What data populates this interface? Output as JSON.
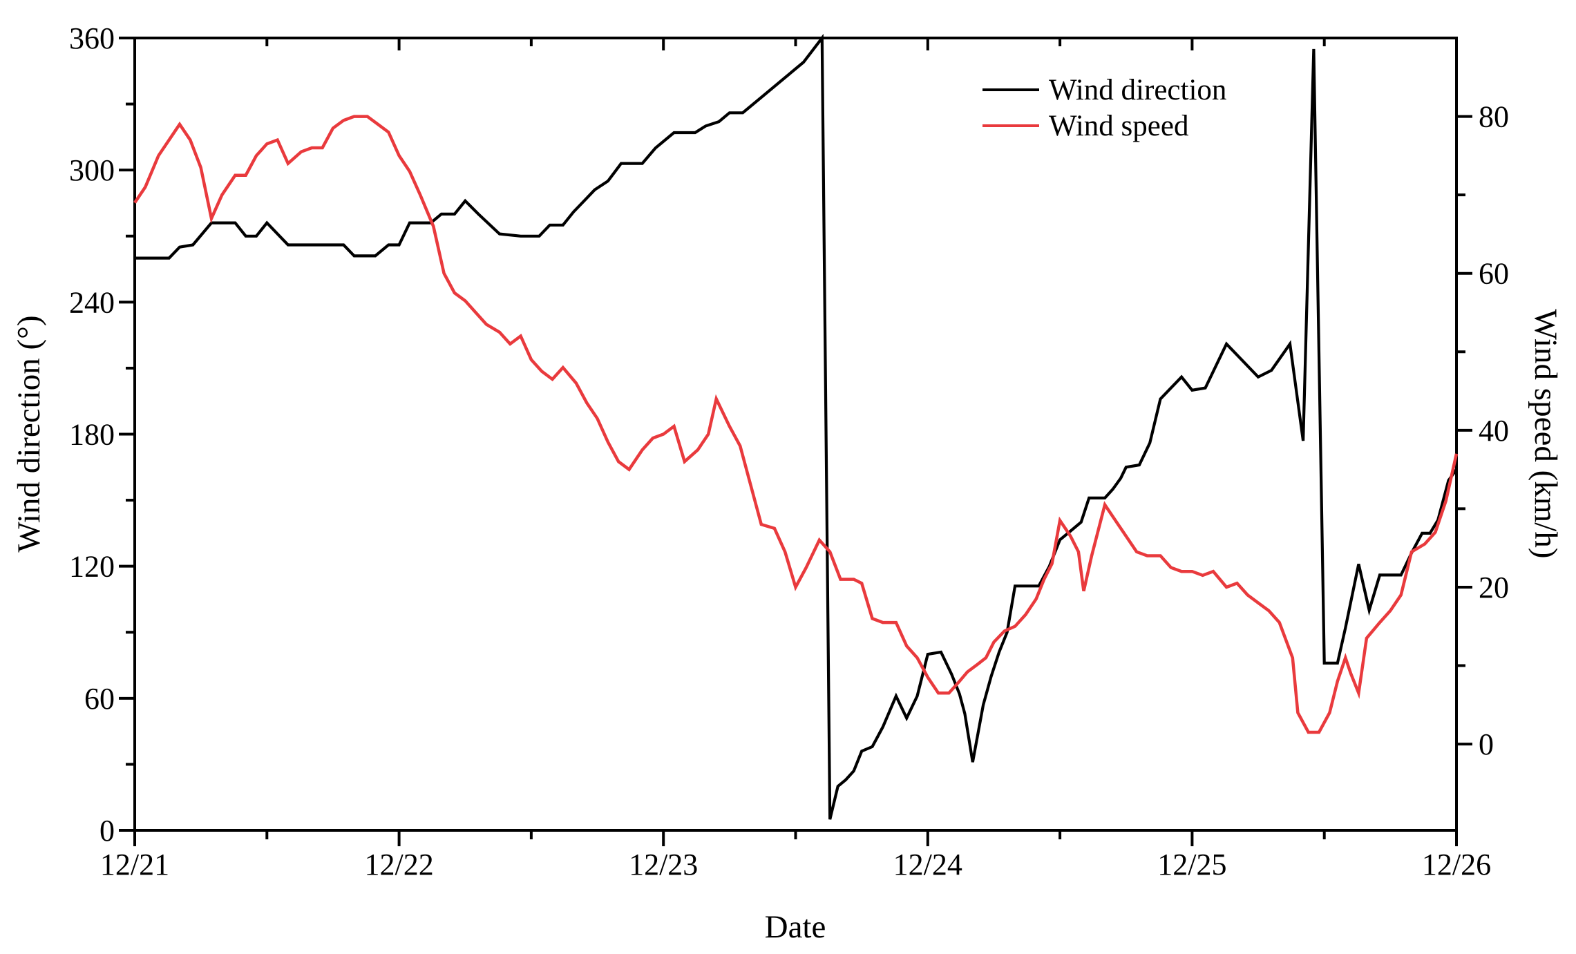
{
  "figure": {
    "background": "#ffffff",
    "left_axis_title": "Wind direction (°)",
    "right_axis_title": "Wind speed (km/h)",
    "x_axis_title": "Date"
  },
  "legend": {
    "items": [
      {
        "label": "Wind direction",
        "color": "#000000"
      },
      {
        "label": "Wind speed",
        "color": "#e93a3d"
      }
    ]
  },
  "chart_data": {
    "type": "line",
    "title": "",
    "xlabel": "Date",
    "grid": false,
    "legend_position": "upper-right-inside",
    "x_axis": {
      "unit": "days since 12/21 00:00",
      "range": [
        0,
        5
      ],
      "tick_positions": [
        0,
        1,
        2,
        3,
        4,
        5
      ],
      "tick_labels": [
        "12/21",
        "12/22",
        "12/23",
        "12/24",
        "12/25",
        "12/26"
      ],
      "minor_step": 0.5
    },
    "left_y_axis": {
      "label": "Wind direction (°)",
      "range": [
        0,
        360
      ],
      "ticks": [
        0,
        60,
        120,
        180,
        240,
        300,
        360
      ],
      "minor_step": 30
    },
    "right_y_axis": {
      "label": "Wind speed (km/h)",
      "range": [
        -11,
        90
      ],
      "ticks": [
        0,
        20,
        40,
        60,
        80
      ],
      "minor_step": 10
    },
    "series": [
      {
        "name": "Wind direction",
        "axis": "left",
        "unit": "deg",
        "color": "#000000",
        "points": [
          [
            0.0,
            260
          ],
          [
            0.13,
            260
          ],
          [
            0.17,
            265
          ],
          [
            0.22,
            266
          ],
          [
            0.29,
            276
          ],
          [
            0.38,
            276
          ],
          [
            0.42,
            270
          ],
          [
            0.46,
            270
          ],
          [
            0.5,
            276
          ],
          [
            0.54,
            271
          ],
          [
            0.58,
            266
          ],
          [
            0.79,
            266
          ],
          [
            0.83,
            261
          ],
          [
            0.91,
            261
          ],
          [
            0.96,
            266
          ],
          [
            1.0,
            266
          ],
          [
            1.04,
            276
          ],
          [
            1.12,
            276
          ],
          [
            1.16,
            280
          ],
          [
            1.21,
            280
          ],
          [
            1.25,
            286
          ],
          [
            1.3,
            280
          ],
          [
            1.38,
            271
          ],
          [
            1.46,
            270
          ],
          [
            1.53,
            270
          ],
          [
            1.57,
            275
          ],
          [
            1.62,
            275
          ],
          [
            1.66,
            281
          ],
          [
            1.7,
            286
          ],
          [
            1.74,
            291
          ],
          [
            1.79,
            295
          ],
          [
            1.84,
            303
          ],
          [
            1.92,
            303
          ],
          [
            1.97,
            310
          ],
          [
            2.04,
            317
          ],
          [
            2.12,
            317
          ],
          [
            2.16,
            320
          ],
          [
            2.21,
            322
          ],
          [
            2.25,
            326
          ],
          [
            2.3,
            326
          ],
          [
            2.37,
            333
          ],
          [
            2.45,
            341
          ],
          [
            2.53,
            349
          ],
          [
            2.6,
            360
          ],
          [
            2.63,
            5
          ],
          [
            2.66,
            20
          ],
          [
            2.69,
            23
          ],
          [
            2.72,
            27
          ],
          [
            2.75,
            36
          ],
          [
            2.79,
            38
          ],
          [
            2.83,
            47
          ],
          [
            2.88,
            61
          ],
          [
            2.92,
            51
          ],
          [
            2.96,
            61
          ],
          [
            3.0,
            80
          ],
          [
            3.05,
            81
          ],
          [
            3.09,
            71
          ],
          [
            3.12,
            62
          ],
          [
            3.14,
            53
          ],
          [
            3.17,
            31
          ],
          [
            3.21,
            57
          ],
          [
            3.24,
            70
          ],
          [
            3.27,
            81
          ],
          [
            3.3,
            90
          ],
          [
            3.33,
            111
          ],
          [
            3.42,
            111
          ],
          [
            3.46,
            120
          ],
          [
            3.5,
            132
          ],
          [
            3.54,
            136
          ],
          [
            3.58,
            140
          ],
          [
            3.61,
            151
          ],
          [
            3.67,
            151
          ],
          [
            3.7,
            155
          ],
          [
            3.73,
            160
          ],
          [
            3.75,
            165
          ],
          [
            3.8,
            166
          ],
          [
            3.84,
            176
          ],
          [
            3.88,
            196
          ],
          [
            3.92,
            201
          ],
          [
            3.96,
            206
          ],
          [
            4.0,
            200
          ],
          [
            4.05,
            201
          ],
          [
            4.13,
            221
          ],
          [
            4.17,
            216
          ],
          [
            4.25,
            206
          ],
          [
            4.3,
            209
          ],
          [
            4.37,
            221
          ],
          [
            4.42,
            177
          ],
          [
            4.46,
            355
          ],
          [
            4.5,
            76
          ],
          [
            4.55,
            76
          ],
          [
            4.58,
            92
          ],
          [
            4.63,
            121
          ],
          [
            4.67,
            100
          ],
          [
            4.71,
            116
          ],
          [
            4.79,
            116
          ],
          [
            4.83,
            126
          ],
          [
            4.87,
            135
          ],
          [
            4.9,
            135
          ],
          [
            4.93,
            141
          ],
          [
            4.97,
            159
          ],
          [
            5.0,
            164
          ]
        ]
      },
      {
        "name": "Wind speed",
        "axis": "right",
        "unit": "km/h",
        "color": "#e93a3d",
        "points": [
          [
            0.0,
            69
          ],
          [
            0.04,
            71
          ],
          [
            0.09,
            75
          ],
          [
            0.13,
            77
          ],
          [
            0.17,
            79
          ],
          [
            0.21,
            77
          ],
          [
            0.25,
            73.5
          ],
          [
            0.29,
            67
          ],
          [
            0.33,
            70
          ],
          [
            0.38,
            72.5
          ],
          [
            0.42,
            72.5
          ],
          [
            0.46,
            75
          ],
          [
            0.5,
            76.5
          ],
          [
            0.54,
            77
          ],
          [
            0.58,
            74
          ],
          [
            0.63,
            75.5
          ],
          [
            0.67,
            76
          ],
          [
            0.71,
            76
          ],
          [
            0.75,
            78.5
          ],
          [
            0.79,
            79.5
          ],
          [
            0.83,
            80
          ],
          [
            0.88,
            80
          ],
          [
            0.92,
            79
          ],
          [
            0.96,
            78
          ],
          [
            1.0,
            75
          ],
          [
            1.04,
            73
          ],
          [
            1.08,
            70
          ],
          [
            1.13,
            66
          ],
          [
            1.17,
            60
          ],
          [
            1.21,
            57.5
          ],
          [
            1.25,
            56.5
          ],
          [
            1.29,
            55
          ],
          [
            1.33,
            53.5
          ],
          [
            1.38,
            52.5
          ],
          [
            1.42,
            51
          ],
          [
            1.46,
            52
          ],
          [
            1.5,
            49
          ],
          [
            1.54,
            47.5
          ],
          [
            1.58,
            46.5
          ],
          [
            1.62,
            48
          ],
          [
            1.67,
            46
          ],
          [
            1.71,
            43.5
          ],
          [
            1.75,
            41.5
          ],
          [
            1.79,
            38.5
          ],
          [
            1.83,
            36
          ],
          [
            1.87,
            35
          ],
          [
            1.92,
            37.5
          ],
          [
            1.96,
            39
          ],
          [
            2.0,
            39.5
          ],
          [
            2.04,
            40.5
          ],
          [
            2.08,
            36
          ],
          [
            2.13,
            37.5
          ],
          [
            2.17,
            39.5
          ],
          [
            2.2,
            44
          ],
          [
            2.25,
            40.5
          ],
          [
            2.29,
            38
          ],
          [
            2.33,
            33
          ],
          [
            2.37,
            28
          ],
          [
            2.42,
            27.5
          ],
          [
            2.46,
            24.5
          ],
          [
            2.5,
            20
          ],
          [
            2.54,
            22.5
          ],
          [
            2.59,
            26
          ],
          [
            2.63,
            24.5
          ],
          [
            2.67,
            21
          ],
          [
            2.72,
            21
          ],
          [
            2.75,
            20.5
          ],
          [
            2.79,
            16
          ],
          [
            2.83,
            15.5
          ],
          [
            2.88,
            15.5
          ],
          [
            2.92,
            12.5
          ],
          [
            2.96,
            11
          ],
          [
            3.0,
            8.5
          ],
          [
            3.04,
            6.5
          ],
          [
            3.08,
            6.5
          ],
          [
            3.12,
            8
          ],
          [
            3.15,
            9.2
          ],
          [
            3.19,
            10.2
          ],
          [
            3.22,
            11
          ],
          [
            3.25,
            13
          ],
          [
            3.29,
            14.4
          ],
          [
            3.33,
            15
          ],
          [
            3.37,
            16.5
          ],
          [
            3.41,
            18.5
          ],
          [
            3.44,
            21
          ],
          [
            3.47,
            23
          ],
          [
            3.5,
            28.5
          ],
          [
            3.54,
            26.5
          ],
          [
            3.57,
            24.5
          ],
          [
            3.59,
            19.5
          ],
          [
            3.62,
            24
          ],
          [
            3.67,
            30.5
          ],
          [
            3.7,
            29
          ],
          [
            3.73,
            27.5
          ],
          [
            3.76,
            26
          ],
          [
            3.79,
            24.5
          ],
          [
            3.83,
            24
          ],
          [
            3.88,
            24
          ],
          [
            3.92,
            22.5
          ],
          [
            3.96,
            22
          ],
          [
            4.0,
            22
          ],
          [
            4.04,
            21.5
          ],
          [
            4.08,
            22
          ],
          [
            4.13,
            20
          ],
          [
            4.17,
            20.5
          ],
          [
            4.21,
            19
          ],
          [
            4.25,
            18
          ],
          [
            4.29,
            17
          ],
          [
            4.33,
            15.5
          ],
          [
            4.38,
            11
          ],
          [
            4.4,
            4
          ],
          [
            4.44,
            1.5
          ],
          [
            4.48,
            1.5
          ],
          [
            4.52,
            4
          ],
          [
            4.55,
            8
          ],
          [
            4.58,
            11
          ],
          [
            4.6,
            9
          ],
          [
            4.63,
            6.5
          ],
          [
            4.66,
            13.5
          ],
          [
            4.71,
            15.5
          ],
          [
            4.75,
            17
          ],
          [
            4.79,
            19
          ],
          [
            4.83,
            24.5
          ],
          [
            4.88,
            25.5
          ],
          [
            4.92,
            27
          ],
          [
            4.96,
            31
          ],
          [
            5.0,
            37
          ]
        ]
      }
    ]
  }
}
